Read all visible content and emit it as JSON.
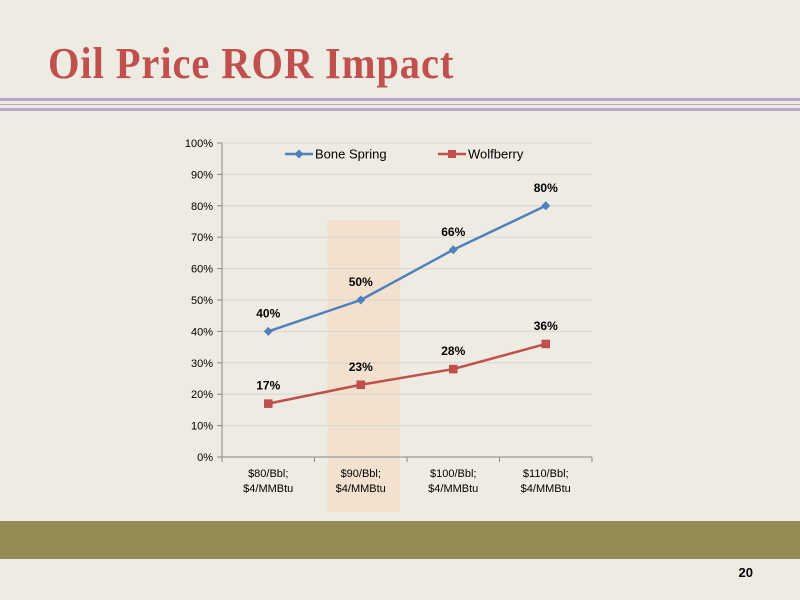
{
  "slide": {
    "title": "Oil Price ROR Impact",
    "page_number": "20"
  },
  "colors": {
    "title": "#c0504d",
    "background": "#eeebe2",
    "footer_bar": "#948a54",
    "rule": "#b9a6c9",
    "highlight": "#f5d9bd"
  },
  "chart_data": {
    "type": "line",
    "categories": [
      [
        "$80/Bbl;",
        "$4/MMBtu"
      ],
      [
        "$90/Bbl;",
        "$4/MMBtu"
      ],
      [
        "$100/Bbl;",
        "$4/MMBtu"
      ],
      [
        "$110/Bbl;",
        "$4/MMBtu"
      ]
    ],
    "ylim": [
      0,
      100
    ],
    "yticks": [
      "0%",
      "10%",
      "20%",
      "30%",
      "40%",
      "50%",
      "60%",
      "70%",
      "80%",
      "90%",
      "100%"
    ],
    "ytick_values": [
      0,
      10,
      20,
      30,
      40,
      50,
      60,
      70,
      80,
      90,
      100
    ],
    "legend_position": "top",
    "highlighted_category_index": 1,
    "series": [
      {
        "name": "Bone Spring",
        "values": [
          40,
          50,
          66,
          80
        ],
        "labels": [
          "40%",
          "50%",
          "66%",
          "80%"
        ],
        "color": "#4f81bd",
        "marker": "diamond"
      },
      {
        "name": "Wolfberry",
        "values": [
          17,
          23,
          28,
          36
        ],
        "labels": [
          "17%",
          "23%",
          "28%",
          "36%"
        ],
        "color": "#c0504d",
        "marker": "square"
      }
    ]
  }
}
